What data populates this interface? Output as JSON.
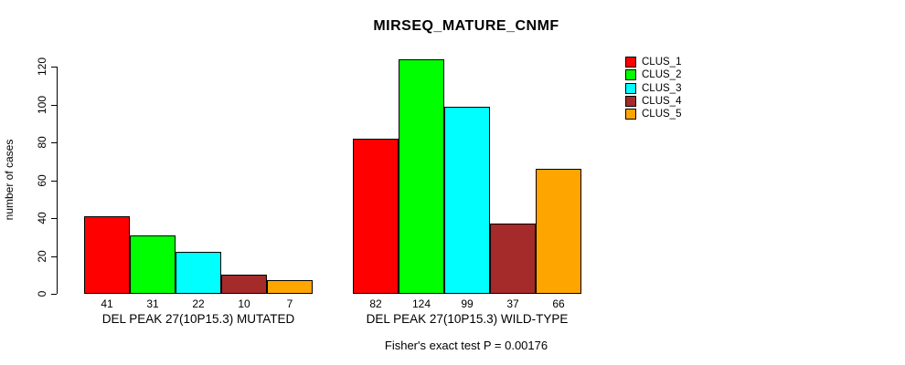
{
  "chart_data": {
    "type": "bar",
    "title": "MIRSEQ_MATURE_CNMF",
    "ylabel": "number of cases",
    "xlabel": "",
    "yticks": [
      0,
      20,
      40,
      60,
      80,
      100,
      120
    ],
    "ylim": [
      0,
      124
    ],
    "grid": false,
    "legend_position": "top-right",
    "series_names": [
      "CLUS_1",
      "CLUS_2",
      "CLUS_3",
      "CLUS_4",
      "CLUS_5"
    ],
    "colors": [
      "#ff0000",
      "#00ff00",
      "#00ffff",
      "#a52a2a",
      "#ffa500"
    ],
    "groups": [
      {
        "label": "DEL PEAK 27(10P15.3) MUTATED",
        "values": [
          41,
          31,
          22,
          10,
          7
        ]
      },
      {
        "label": "DEL PEAK 27(10P15.3) WILD-TYPE",
        "values": [
          82,
          124,
          99,
          37,
          66
        ]
      }
    ],
    "bar_value_labels": [
      [
        "41",
        "31",
        "22",
        "10",
        "7"
      ],
      [
        "82",
        "124",
        "99",
        "37",
        "66"
      ]
    ],
    "footnote": "Fisher's exact test P = 0.00176"
  }
}
